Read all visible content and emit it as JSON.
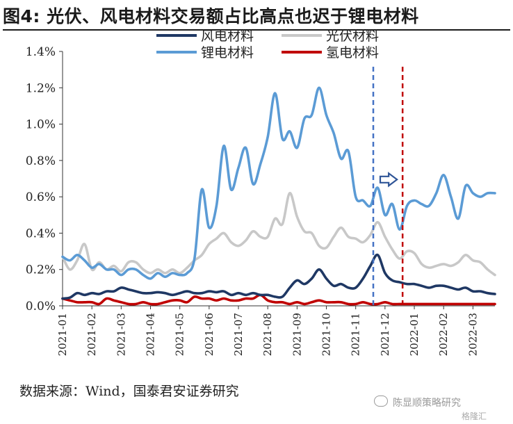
{
  "title": "图4: 光伏、风电材料交易额占比高点也迟于锂电材料",
  "source": "数据来源：Wind，国泰君安证券研究",
  "watermark": "陈显顺策略研究",
  "watermark2": "格隆汇",
  "chart_data": {
    "type": "line",
    "ylim": [
      0,
      1.4
    ],
    "yticks": [
      "0.0%",
      "0.2%",
      "0.4%",
      "0.6%",
      "0.8%",
      "1.0%",
      "1.2%",
      "1.4%"
    ],
    "categories": [
      "2021-01",
      "2021-02",
      "2021-03",
      "2021-04",
      "2021-05",
      "2021-06",
      "2021-07",
      "2021-08",
      "2021-09",
      "2021-10",
      "2021-11",
      "2021-12",
      "2022-01",
      "2022-02",
      "2022-03"
    ],
    "x_range": [
      0,
      14.75
    ],
    "legend": [
      "风电材料",
      "光伏材料",
      "锂电材料",
      "氢电材料"
    ],
    "legend_position": "top",
    "series": [
      {
        "name": "风电材料",
        "color": "#1f3864",
        "x": [
          0,
          0.25,
          0.5,
          0.75,
          1,
          1.25,
          1.5,
          1.75,
          2,
          2.25,
          2.5,
          2.75,
          3,
          3.25,
          3.5,
          3.75,
          4,
          4.25,
          4.5,
          4.75,
          5,
          5.25,
          5.5,
          5.75,
          6,
          6.25,
          6.5,
          6.75,
          7,
          7.25,
          7.5,
          7.75,
          8,
          8.25,
          8.5,
          8.75,
          9,
          9.25,
          9.5,
          9.75,
          10,
          10.25,
          10.5,
          10.75,
          11,
          11.25,
          11.5,
          11.75,
          12,
          12.25,
          12.5,
          12.75,
          13,
          13.25,
          13.5,
          13.75,
          14,
          14.25,
          14.5,
          14.75
        ],
        "y": [
          0.04,
          0.045,
          0.07,
          0.06,
          0.07,
          0.065,
          0.08,
          0.08,
          0.1,
          0.09,
          0.08,
          0.07,
          0.07,
          0.075,
          0.07,
          0.06,
          0.07,
          0.08,
          0.07,
          0.07,
          0.08,
          0.075,
          0.08,
          0.06,
          0.07,
          0.06,
          0.07,
          0.06,
          0.06,
          0.05,
          0.05,
          0.1,
          0.14,
          0.12,
          0.15,
          0.2,
          0.15,
          0.11,
          0.12,
          0.1,
          0.1,
          0.15,
          0.22,
          0.28,
          0.18,
          0.14,
          0.13,
          0.12,
          0.12,
          0.11,
          0.1,
          0.11,
          0.11,
          0.1,
          0.09,
          0.1,
          0.08,
          0.08,
          0.07,
          0.065
        ]
      },
      {
        "name": "光伏材料",
        "color": "#c8c8c8",
        "x": [
          0,
          0.25,
          0.5,
          0.75,
          1,
          1.25,
          1.5,
          1.75,
          2,
          2.25,
          2.5,
          2.75,
          3,
          3.25,
          3.5,
          3.75,
          4,
          4.25,
          4.5,
          4.75,
          5,
          5.25,
          5.5,
          5.75,
          6,
          6.25,
          6.5,
          6.75,
          7,
          7.25,
          7.5,
          7.75,
          8,
          8.25,
          8.5,
          8.75,
          9,
          9.25,
          9.5,
          9.75,
          10,
          10.25,
          10.5,
          10.75,
          11,
          11.25,
          11.5,
          11.75,
          12,
          12.25,
          12.5,
          12.75,
          13,
          13.25,
          13.5,
          13.75,
          14,
          14.25,
          14.5,
          14.75
        ],
        "y": [
          0.27,
          0.2,
          0.25,
          0.34,
          0.2,
          0.24,
          0.2,
          0.22,
          0.19,
          0.24,
          0.24,
          0.2,
          0.18,
          0.2,
          0.18,
          0.2,
          0.18,
          0.21,
          0.25,
          0.28,
          0.34,
          0.37,
          0.4,
          0.35,
          0.33,
          0.36,
          0.41,
          0.38,
          0.38,
          0.48,
          0.45,
          0.62,
          0.49,
          0.41,
          0.4,
          0.33,
          0.32,
          0.38,
          0.43,
          0.38,
          0.37,
          0.35,
          0.39,
          0.46,
          0.38,
          0.31,
          0.26,
          0.3,
          0.29,
          0.23,
          0.21,
          0.22,
          0.23,
          0.22,
          0.24,
          0.28,
          0.25,
          0.24,
          0.2,
          0.17
        ]
      },
      {
        "name": "锂电材料",
        "color": "#5b9bd5",
        "x": [
          0,
          0.25,
          0.5,
          0.75,
          1,
          1.25,
          1.5,
          1.75,
          2,
          2.25,
          2.5,
          2.75,
          3,
          3.25,
          3.5,
          3.75,
          4,
          4.25,
          4.5,
          4.75,
          5,
          5.25,
          5.5,
          5.75,
          6,
          6.25,
          6.5,
          6.75,
          7,
          7.25,
          7.5,
          7.75,
          8,
          8.25,
          8.5,
          8.75,
          9,
          9.25,
          9.5,
          9.75,
          10,
          10.25,
          10.5,
          10.75,
          11,
          11.25,
          11.5,
          11.75,
          12,
          12.25,
          12.5,
          12.75,
          13,
          13.25,
          13.5,
          13.75,
          14,
          14.25,
          14.5,
          14.75
        ],
        "y": [
          0.27,
          0.25,
          0.28,
          0.25,
          0.21,
          0.23,
          0.2,
          0.2,
          0.17,
          0.2,
          0.2,
          0.17,
          0.15,
          0.18,
          0.16,
          0.18,
          0.17,
          0.18,
          0.26,
          0.64,
          0.43,
          0.55,
          0.88,
          0.64,
          0.76,
          0.87,
          0.67,
          0.78,
          0.93,
          1.17,
          0.92,
          0.96,
          0.87,
          1.03,
          1.05,
          1.2,
          1.05,
          0.95,
          0.81,
          0.85,
          0.6,
          0.58,
          0.55,
          0.65,
          0.5,
          0.56,
          0.42,
          0.55,
          0.58,
          0.56,
          0.55,
          0.62,
          0.72,
          0.6,
          0.48,
          0.66,
          0.62,
          0.6,
          0.62,
          0.62
        ]
      },
      {
        "name": "氢电材料",
        "color": "#c00000",
        "x": [
          0,
          0.25,
          0.5,
          0.75,
          1,
          1.25,
          1.5,
          1.75,
          2,
          2.25,
          2.5,
          2.75,
          3,
          3.25,
          3.5,
          3.75,
          4,
          4.25,
          4.5,
          4.75,
          5,
          5.25,
          5.5,
          5.75,
          6,
          6.25,
          6.5,
          6.75,
          7,
          7.25,
          7.5,
          7.75,
          8,
          8.25,
          8.5,
          8.75,
          9,
          9.25,
          9.5,
          9.75,
          10,
          10.25,
          10.5,
          10.75,
          11,
          11.25,
          11.5,
          11.75,
          12,
          12.25,
          12.5,
          12.75,
          13,
          13.25,
          13.5,
          13.75,
          14,
          14.25,
          14.5,
          14.75
        ],
        "y": [
          0.04,
          0.03,
          0.02,
          0.02,
          0.02,
          0.01,
          0.04,
          0.03,
          0.02,
          0.01,
          0.01,
          0.02,
          0.01,
          0.01,
          0.02,
          0.03,
          0.03,
          0.02,
          0.05,
          0.04,
          0.04,
          0.03,
          0.04,
          0.03,
          0.03,
          0.04,
          0.04,
          0.06,
          0.03,
          0.02,
          0.02,
          0.01,
          0.02,
          0.01,
          0.02,
          0.03,
          0.02,
          0.02,
          0.02,
          0.01,
          0.01,
          0.02,
          0.01,
          0.01,
          0.02,
          0.01,
          0.01,
          0.01,
          0.01,
          0.01,
          0.01,
          0.01,
          0.01,
          0.01,
          0.01,
          0.01,
          0.01,
          0.01,
          0.01,
          0.01
        ]
      }
    ],
    "markers": [
      {
        "name": "blue-marker",
        "color": "#4472c4",
        "x": 10.6,
        "style": "dashed"
      },
      {
        "name": "red-marker",
        "color": "#c00000",
        "x": 11.6,
        "style": "dashed"
      }
    ],
    "arrow_color": "#2f5597"
  }
}
